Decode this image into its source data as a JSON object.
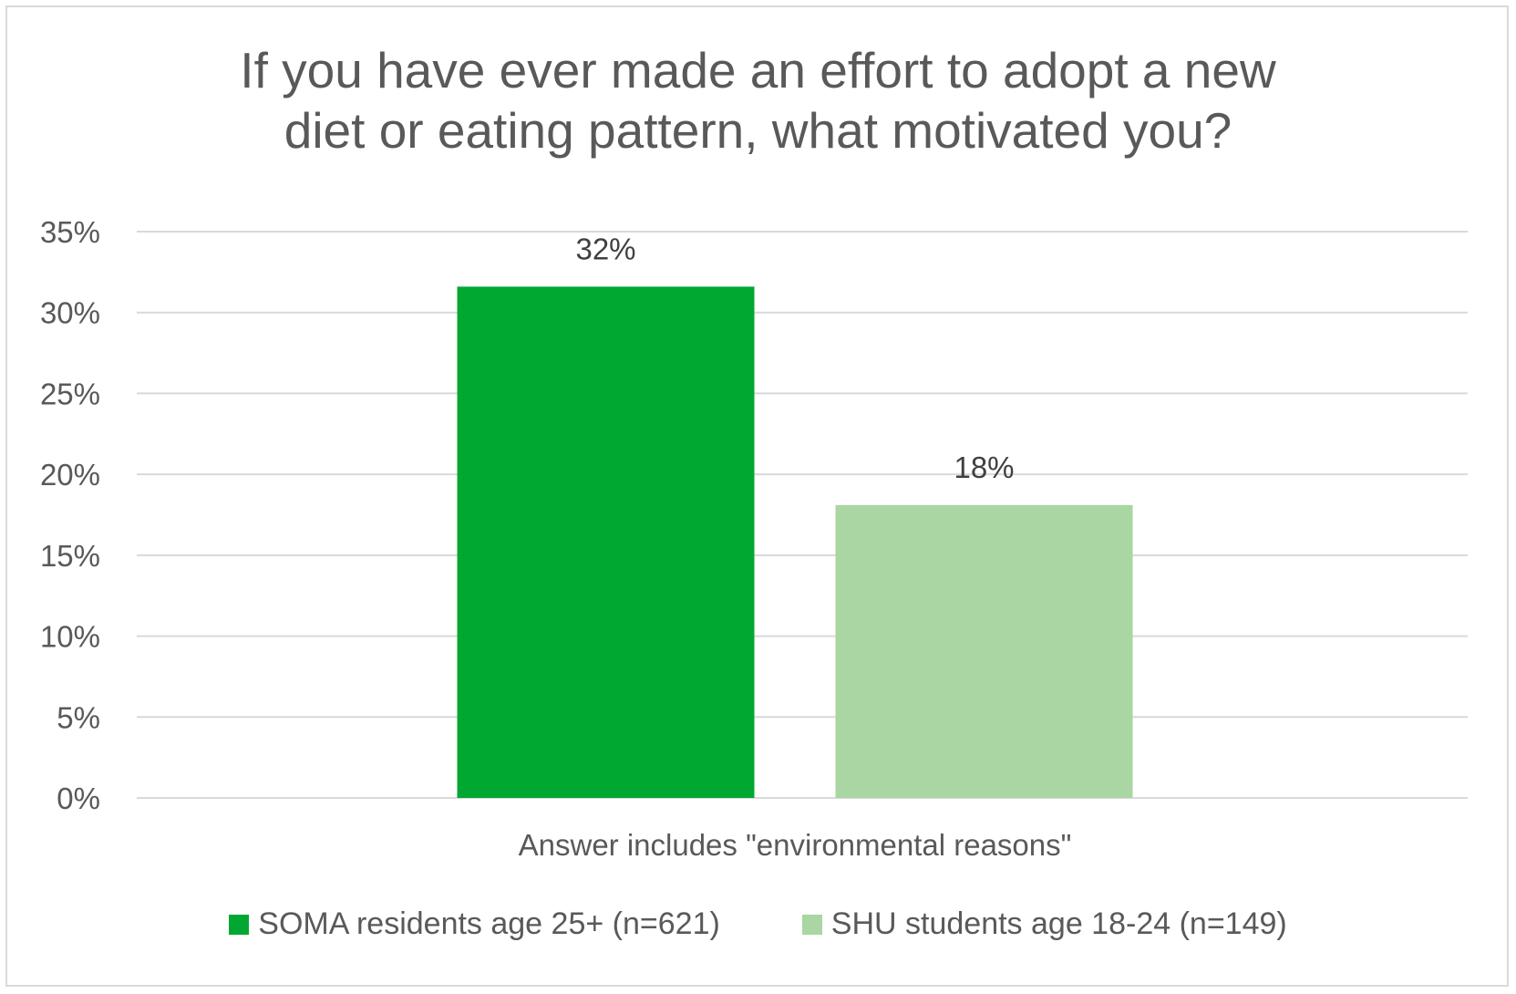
{
  "chart_data": {
    "type": "bar",
    "title_lines": [
      "If you have ever made an effort to adopt a new",
      "diet or eating pattern, what motivated you?"
    ],
    "categories": [
      "Answer includes \"environmental reasons\""
    ],
    "series": [
      {
        "name": "SOMA residents age 25+ (n=621)",
        "values": [
          31.6
        ],
        "label": "32%",
        "color": "#00a832"
      },
      {
        "name": "SHU students age 18-24 (n=149)",
        "values": [
          18.1
        ],
        "label": "18%",
        "color": "#a9d6a2"
      }
    ],
    "ylim": [
      0,
      35
    ],
    "yticks": [
      0,
      5,
      10,
      15,
      20,
      25,
      30,
      35
    ],
    "ytick_labels": [
      "0%",
      "5%",
      "10%",
      "15%",
      "20%",
      "25%",
      "30%",
      "35%"
    ],
    "grid": true,
    "legend_position": "bottom"
  }
}
